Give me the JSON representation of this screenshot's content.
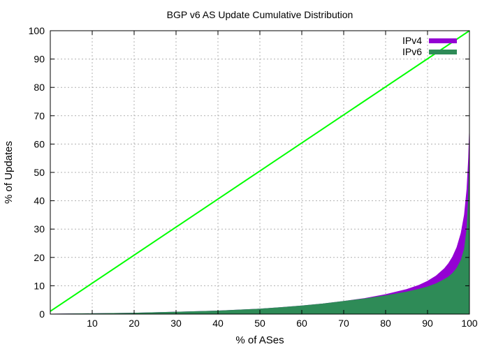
{
  "chart_data": {
    "type": "area",
    "title": "BGP v6 AS Update Cumulative Distribution",
    "xlabel": "% of ASes",
    "ylabel": "% of Updates",
    "xlim": [
      0,
      100
    ],
    "ylim": [
      0,
      100
    ],
    "x_ticks": [
      10,
      20,
      30,
      40,
      50,
      60,
      70,
      80,
      90,
      100
    ],
    "y_ticks": [
      0,
      10,
      20,
      30,
      40,
      50,
      60,
      70,
      80,
      90,
      100
    ],
    "grid": true,
    "legend_position": "top-right",
    "series": [
      {
        "name": "IPv4",
        "color": "#9400d3",
        "points": [
          [
            0,
            0
          ],
          [
            10,
            0.15
          ],
          [
            20,
            0.35
          ],
          [
            30,
            0.7
          ],
          [
            40,
            1.1
          ],
          [
            50,
            1.8
          ],
          [
            55,
            2.3
          ],
          [
            60,
            2.9
          ],
          [
            65,
            3.6
          ],
          [
            70,
            4.5
          ],
          [
            75,
            5.5
          ],
          [
            80,
            6.9
          ],
          [
            85,
            8.7
          ],
          [
            88,
            10.2
          ],
          [
            90,
            11.6
          ],
          [
            92,
            13.4
          ],
          [
            94,
            16
          ],
          [
            95,
            17.8
          ],
          [
            96,
            20.2
          ],
          [
            97,
            23.5
          ],
          [
            98,
            28.5
          ],
          [
            98.8,
            35
          ],
          [
            99.4,
            44
          ],
          [
            99.8,
            55
          ],
          [
            100,
            64
          ]
        ]
      },
      {
        "name": "IPv6",
        "color": "#2e8b57",
        "points": [
          [
            0,
            0
          ],
          [
            10,
            0.15
          ],
          [
            20,
            0.35
          ],
          [
            30,
            0.7
          ],
          [
            40,
            1.1
          ],
          [
            50,
            1.8
          ],
          [
            55,
            2.3
          ],
          [
            60,
            2.9
          ],
          [
            65,
            3.6
          ],
          [
            70,
            4.5
          ],
          [
            75,
            5.4
          ],
          [
            80,
            6.5
          ],
          [
            85,
            7.8
          ],
          [
            88,
            8.8
          ],
          [
            90,
            9.6
          ],
          [
            92,
            10.7
          ],
          [
            94,
            12.2
          ],
          [
            95,
            13.1
          ],
          [
            96,
            14.4
          ],
          [
            97,
            16.2
          ],
          [
            98,
            19
          ],
          [
            98.8,
            23
          ],
          [
            99.4,
            30
          ],
          [
            99.8,
            42
          ],
          [
            100,
            55
          ]
        ]
      }
    ],
    "reference_line": {
      "color": "#00ff00",
      "points": [
        [
          0,
          1
        ],
        [
          100,
          100
        ]
      ]
    }
  }
}
